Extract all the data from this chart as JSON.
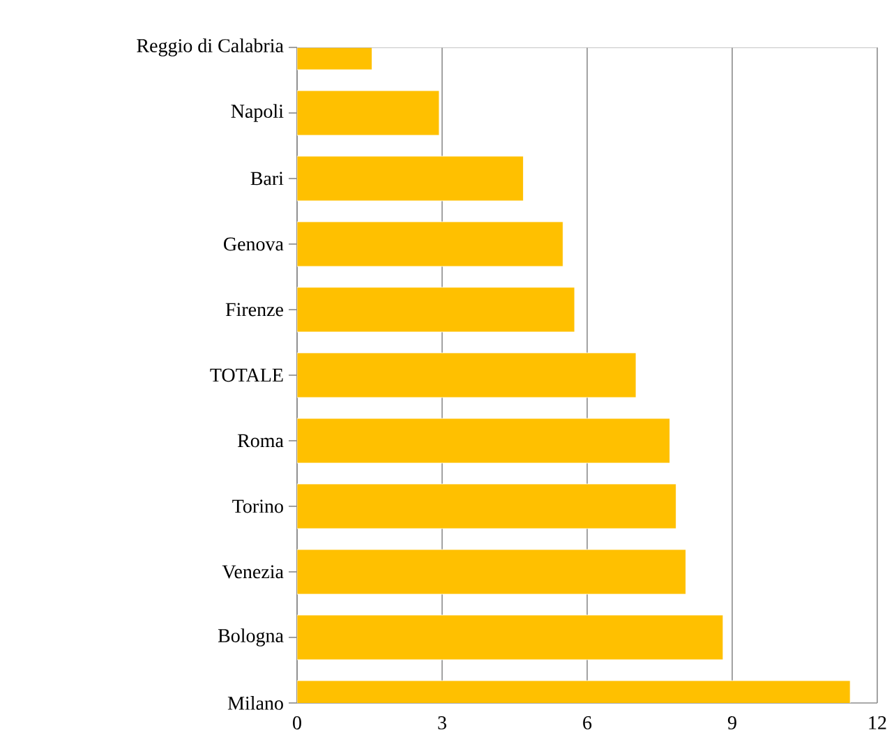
{
  "chart_data": {
    "type": "bar",
    "orientation": "horizontal",
    "categories": [
      "Reggio di Calabria",
      "Napoli",
      "Bari",
      "Genova",
      "Firenze",
      "TOTALE",
      "Roma",
      "Torino",
      "Venezia",
      "Bologna",
      "Milano"
    ],
    "values": [
      1.55,
      2.94,
      4.68,
      5.5,
      5.74,
      7.01,
      7.71,
      7.84,
      8.04,
      8.81,
      11.44
    ],
    "color": "#ffc000",
    "xlim": [
      0,
      12
    ],
    "xticks": [
      0,
      3,
      6,
      9,
      12
    ],
    "grid": "x"
  }
}
